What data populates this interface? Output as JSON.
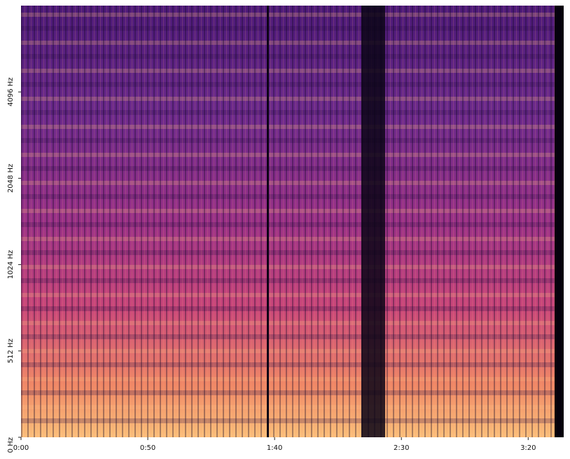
{
  "chart_data": {
    "type": "spectrogram",
    "xlim": [
      0,
      214
    ],
    "xticks": [
      {
        "value": 0,
        "label": "0:00"
      },
      {
        "value": 50,
        "label": "0:50"
      },
      {
        "value": 100,
        "label": "1:40"
      },
      {
        "value": 150,
        "label": "2:30"
      },
      {
        "value": 200,
        "label": "3:20"
      }
    ],
    "ylim": [
      0,
      8192
    ],
    "yscale": "symlog",
    "linthresh": 512,
    "yticks": [
      {
        "value": 0,
        "label": "0 Hz"
      },
      {
        "value": 512,
        "label": "512 Hz"
      },
      {
        "value": 1024,
        "label": "1024 Hz"
      },
      {
        "value": 2048,
        "label": "2048 Hz"
      },
      {
        "value": 4096,
        "label": "4096 Hz"
      }
    ]
  }
}
